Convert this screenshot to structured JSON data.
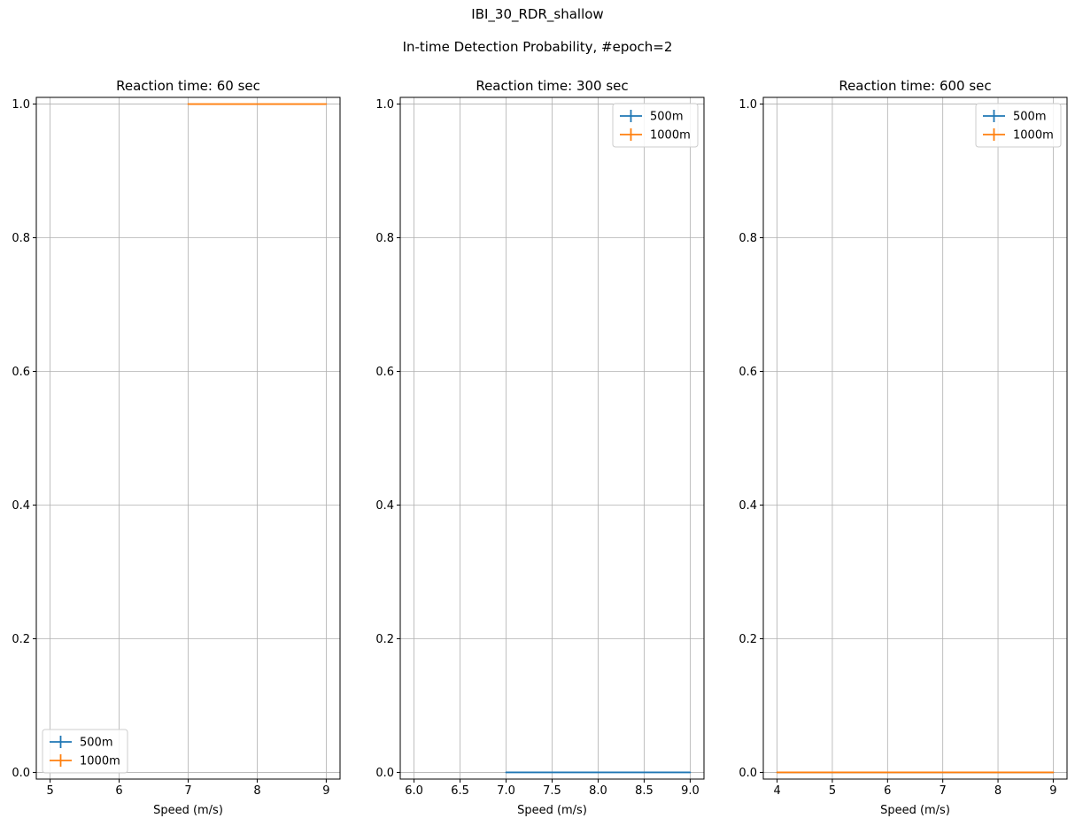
{
  "figure": {
    "suptitle_line1": "IBI_30_RDR_shallow",
    "suptitle_line2": "In-time Detection Probability, #epoch=2"
  },
  "colors": {
    "series_500m": "#1f77b4",
    "series_1000m": "#ff7f0e",
    "grid": "#b0b0b0",
    "axes": "#000000"
  },
  "chart_data": [
    {
      "type": "line",
      "title": "Reaction time: 60 sec",
      "xlabel": "Speed (m/s)",
      "ylabel": "",
      "xlim": [
        4.8,
        9.2
      ],
      "ylim": [
        -0.01,
        1.01
      ],
      "xticks": [
        5,
        6,
        7,
        8,
        9
      ],
      "xtick_labels": [
        "5",
        "6",
        "7",
        "8",
        "9"
      ],
      "yticks": [
        0.0,
        0.2,
        0.4,
        0.6,
        0.8,
        1.0
      ],
      "ytick_labels": [
        "0.0",
        "0.2",
        "0.4",
        "0.6",
        "0.8",
        "1.0"
      ],
      "grid": true,
      "legend_position": "lower-left",
      "series": [
        {
          "name": "500m",
          "x": [],
          "y": []
        },
        {
          "name": "1000m",
          "x": [
            7,
            9
          ],
          "y": [
            1.0,
            1.0
          ]
        }
      ]
    },
    {
      "type": "line",
      "title": "Reaction time: 300 sec",
      "xlabel": "Speed (m/s)",
      "ylabel": "",
      "xlim": [
        5.85,
        9.15
      ],
      "ylim": [
        -0.01,
        1.01
      ],
      "xticks": [
        6.0,
        6.5,
        7.0,
        7.5,
        8.0,
        8.5,
        9.0
      ],
      "xtick_labels": [
        "6.0",
        "6.5",
        "7.0",
        "7.5",
        "8.0",
        "8.5",
        "9.0"
      ],
      "yticks": [
        0.0,
        0.2,
        0.4,
        0.6,
        0.8,
        1.0
      ],
      "ytick_labels": [
        "0.0",
        "0.2",
        "0.4",
        "0.6",
        "0.8",
        "1.0"
      ],
      "grid": true,
      "legend_position": "upper-right",
      "series": [
        {
          "name": "500m",
          "x": [
            7,
            9
          ],
          "y": [
            0.0,
            0.0
          ]
        },
        {
          "name": "1000m",
          "x": [],
          "y": []
        }
      ]
    },
    {
      "type": "line",
      "title": "Reaction time: 600 sec",
      "xlabel": "Speed (m/s)",
      "ylabel": "",
      "xlim": [
        3.75,
        9.25
      ],
      "ylim": [
        -0.01,
        1.01
      ],
      "xticks": [
        4,
        5,
        6,
        7,
        8,
        9
      ],
      "xtick_labels": [
        "4",
        "5",
        "6",
        "7",
        "8",
        "9"
      ],
      "yticks": [
        0.0,
        0.2,
        0.4,
        0.6,
        0.8,
        1.0
      ],
      "ytick_labels": [
        "0.0",
        "0.2",
        "0.4",
        "0.6",
        "0.8",
        "1.0"
      ],
      "grid": true,
      "legend_position": "upper-right",
      "series": [
        {
          "name": "500m",
          "x": [
            4,
            9
          ],
          "y": [
            0.0,
            0.0
          ]
        },
        {
          "name": "1000m",
          "x": [
            4,
            9
          ],
          "y": [
            0.0,
            0.0
          ]
        }
      ]
    }
  ]
}
